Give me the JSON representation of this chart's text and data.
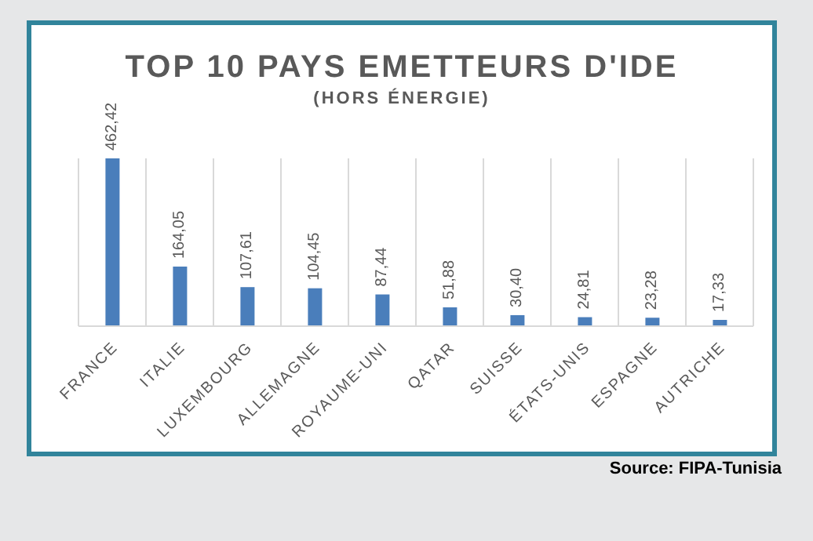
{
  "chart_data": {
    "type": "bar",
    "title": "TOP 10 PAYS EMETTEURS D'IDE",
    "subtitle": "(HORS ÉNERGIE)",
    "categories": [
      "FRANCE",
      "ITALIE",
      "LUXEMBOURG",
      "ALLEMAGNE",
      "ROYAUME-UNI",
      "QATAR",
      "SUISSE",
      "ÉTATS-UNIS",
      "ESPAGNE",
      "AUTRICHE"
    ],
    "values": [
      462.42,
      164.05,
      107.61,
      104.45,
      87.44,
      51.88,
      30.4,
      24.81,
      23.28,
      17.33
    ],
    "value_labels": [
      "462,42",
      "164,05",
      "107,61",
      "104,45",
      "87,44",
      "51,88",
      "30,40",
      "24,81",
      "23,28",
      "17,33"
    ],
    "color": "#4a7ebb",
    "grid": "x",
    "annotations": [
      "Source: FIPA-Tunisia"
    ]
  }
}
